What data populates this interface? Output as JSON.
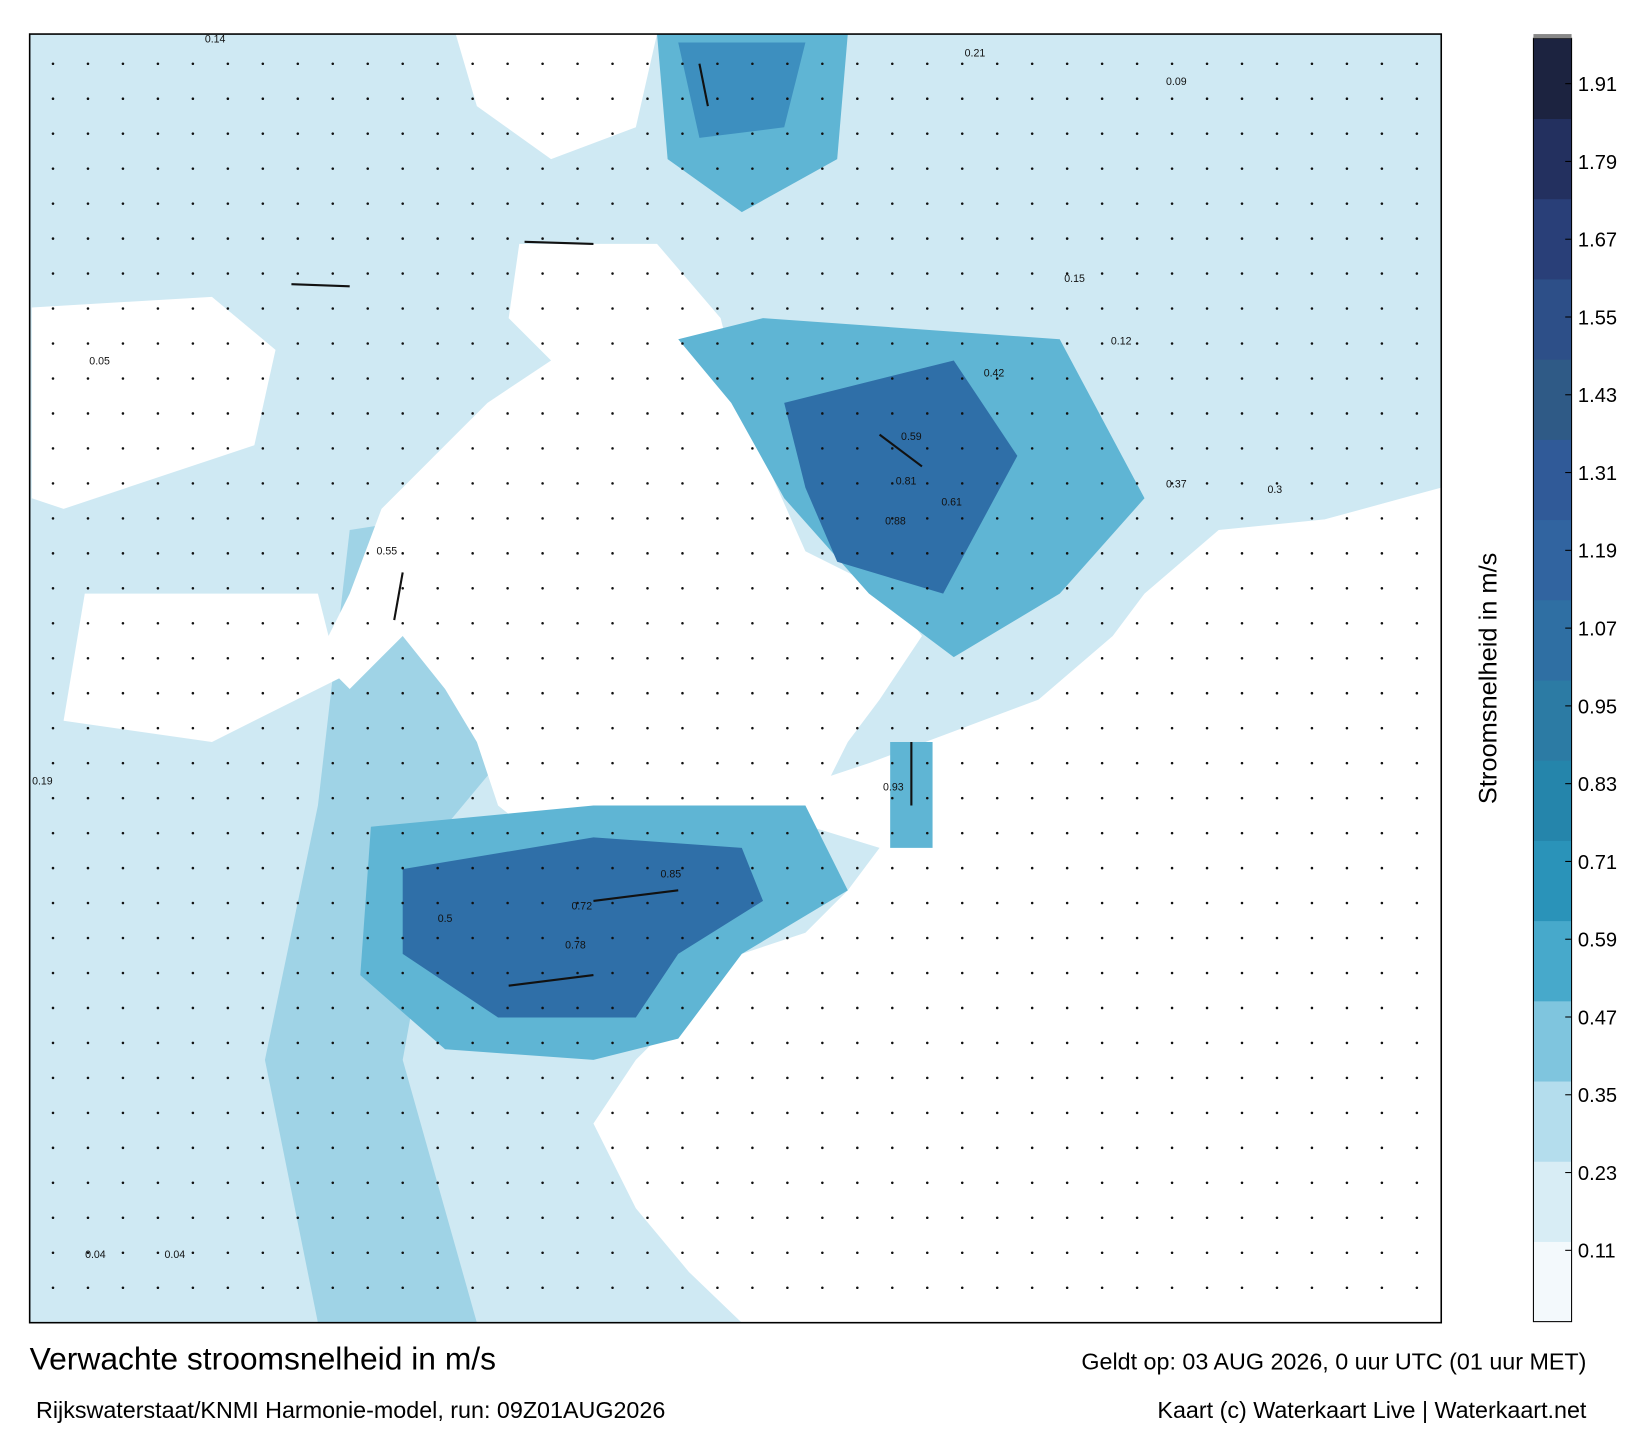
{
  "title": "Verwachte stroomsnelheid in m/s",
  "subtitle": "Rijkswaterstaat/KNMI Harmonie-model, run: 09Z01AUG2026",
  "valid_time": "Geldt op: 03 AUG 2026, 0 uur UTC (01 uur MET)",
  "credit": "Kaart (c) Waterkaart Live | Waterkaart.net",
  "colorbar": {
    "label": "Stroomsnelheid in m/s",
    "lim": [
      0,
      1.98
    ],
    "ticks": [
      0.11,
      0.23,
      0.35,
      0.47,
      0.59,
      0.71,
      0.83,
      0.95,
      1.07,
      1.19,
      1.31,
      1.43,
      1.55,
      1.67,
      1.79,
      1.91
    ],
    "colors": [
      "#f3f9fc",
      "#d8edf5",
      "#b4dded",
      "#7fc5de",
      "#47a9cb",
      "#2a93b9",
      "#2585ab",
      "#2c7ba4",
      "#2f6fa3",
      "#3164a0",
      "#305a98",
      "#2f5a86",
      "#2d4f88",
      "#293f78",
      "#23305f",
      "#1c2340"
    ]
  },
  "map_labels": [
    "0.85",
    "0.88",
    "0.93",
    "0.81",
    "0.72",
    "0.78",
    "0.5",
    "0.42",
    "0.21",
    "0.14",
    "0.05",
    "0.19",
    "0.04",
    "0.04",
    "0.61",
    "0.59",
    "0.55",
    "0.37",
    "0.15",
    "0.12",
    "0.09",
    "0.3"
  ]
}
